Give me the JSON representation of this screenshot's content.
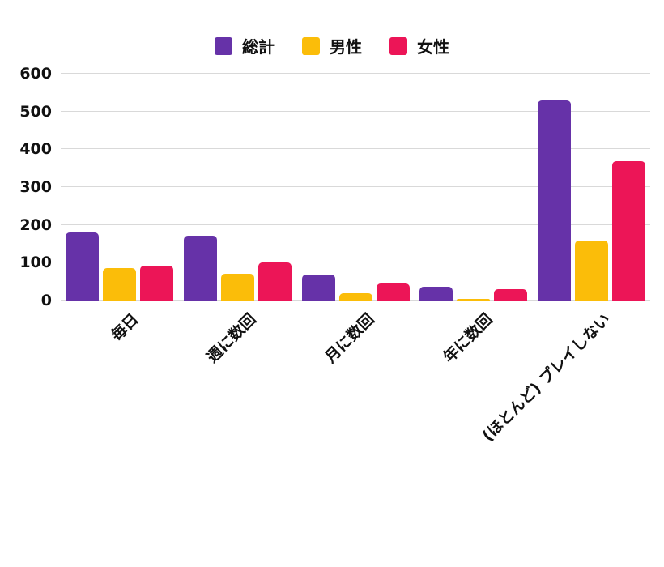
{
  "chart_data": {
    "type": "bar",
    "title": "",
    "categories": [
      "毎日",
      "週に数回",
      "月に数回",
      "年に数回",
      "(ほとんど) プレイしない"
    ],
    "series": [
      {
        "name": "総計",
        "color": "#6632A8",
        "values": [
          180,
          172,
          69,
          36,
          530
        ]
      },
      {
        "name": "男性",
        "color": "#FBBD09",
        "values": [
          85,
          70,
          19,
          5,
          158
        ]
      },
      {
        "name": "女性",
        "color": "#EC1557",
        "values": [
          93,
          101,
          44,
          29,
          368
        ]
      }
    ],
    "xlabel": "",
    "ylabel": "",
    "ylim": [
      0,
      600
    ],
    "yticks": [
      0,
      100,
      200,
      300,
      400,
      500,
      600
    ],
    "grid": true,
    "grid_axis": "y",
    "gridline_color": "#d9d9d9",
    "legend_position": "top-center",
    "text_color": "#111111",
    "background_color": "#ffffff",
    "bar_corner_radius": 5
  }
}
